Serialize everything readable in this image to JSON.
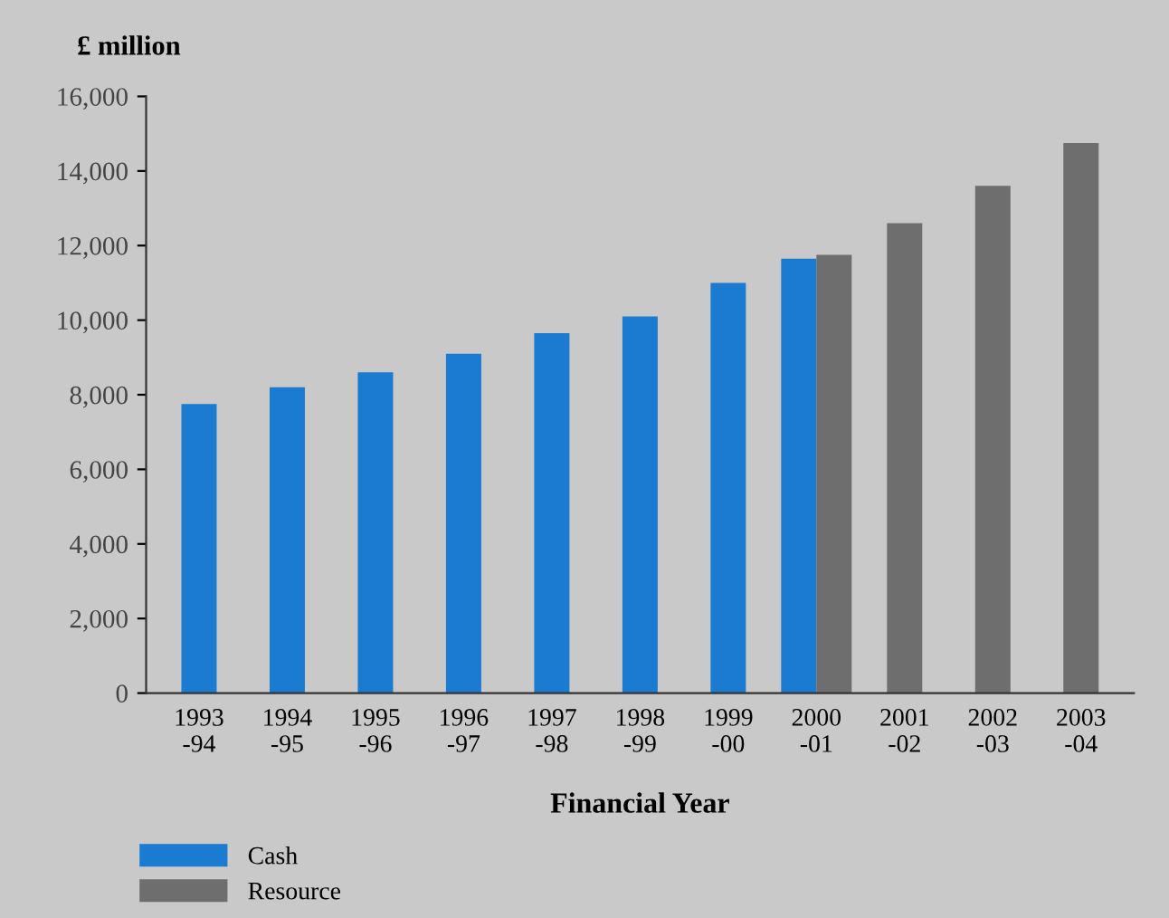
{
  "chart_data": {
    "type": "bar",
    "ylabel": "£ million",
    "xlabel": "Financial Year",
    "categories": [
      "1993\n-94",
      "1994\n-95",
      "1995\n-96",
      "1996\n-97",
      "1997\n-98",
      "1998\n-99",
      "1999\n-00",
      "2000\n-01",
      "2001\n-02",
      "2002\n-03",
      "2003\n-04"
    ],
    "series": [
      {
        "name": "Cash",
        "color": "#1a7bd0",
        "values": [
          7750,
          8200,
          8600,
          9100,
          9650,
          10100,
          11000,
          11650,
          null,
          null,
          null
        ]
      },
      {
        "name": "Resource",
        "color": "#6e6e6e",
        "values": [
          null,
          null,
          null,
          null,
          null,
          null,
          null,
          11750,
          12600,
          13600,
          14750
        ]
      }
    ],
    "ylim": [
      0,
      16000
    ],
    "yticks": [
      {
        "value": 0,
        "label": "0"
      },
      {
        "value": 2000,
        "label": "2,000"
      },
      {
        "value": 4000,
        "label": "4,000"
      },
      {
        "value": 6000,
        "label": "6,000"
      },
      {
        "value": 8000,
        "label": "8,000"
      },
      {
        "value": 10000,
        "label": "10,000"
      },
      {
        "value": 12000,
        "label": "12,000"
      },
      {
        "value": 14000,
        "label": "14,000"
      },
      {
        "value": 16000,
        "label": "16,000"
      }
    ],
    "grid": false,
    "legend": "bottom left"
  }
}
